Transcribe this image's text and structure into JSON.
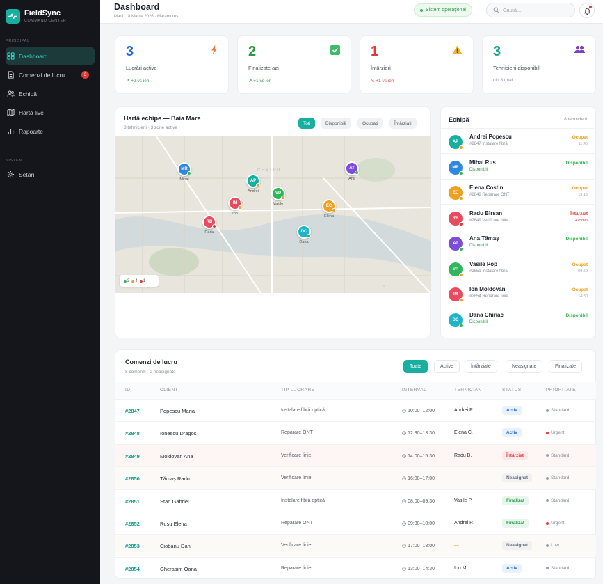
{
  "app": {
    "name": "FieldSync",
    "subtitle": "COMMAND CENTER"
  },
  "sidebar": {
    "section_principal": "PRINCIPAL",
    "section_system": "SISTEM",
    "items": [
      {
        "label": "Dashboard"
      },
      {
        "label": "Comenzi de lucru",
        "badge": "3"
      },
      {
        "label": "Echipă"
      },
      {
        "label": "Hartă live"
      },
      {
        "label": "Rapoarte"
      }
    ],
    "settings": "Setări"
  },
  "header": {
    "title": "Dashboard",
    "date": "Marți, 18 Martie 2026 · Maramureș",
    "status": "Sistem operațional",
    "search_placeholder": "Caută..."
  },
  "kpis": [
    {
      "value": "3",
      "label": "Lucrări active",
      "delta": "+2 vs ieri",
      "color": "#1e6ee0",
      "delta_color": "#2b9a45",
      "icon": "bolt-icon"
    },
    {
      "value": "2",
      "label": "Finalizate azi",
      "delta": "+1 vs ieri",
      "color": "#2b9a45",
      "delta_color": "#2b9a45",
      "icon": "check-icon"
    },
    {
      "value": "1",
      "label": "Întârzieri",
      "delta": "+1 vs ieri",
      "color": "#e53935",
      "delta_color": "#e53935",
      "icon": "warning-icon"
    },
    {
      "value": "3",
      "label": "Tehnicieni disponibili",
      "delta": "din 8 total",
      "color": "#17a08f",
      "delta_color": "#8a8f99",
      "icon": "team-icon"
    }
  ],
  "map": {
    "title": "Hartă echipe — Baia Mare",
    "subtitle": "8 tehnicieni · 3 zone active",
    "filters": [
      "Toți",
      "Disponibili",
      "Ocupați",
      "Întârziați"
    ],
    "district_labels": [
      "CENTRU",
      "VALEA BORCUTULUI"
    ],
    "legend": {
      "available": "3",
      "busy": "4",
      "late": "1"
    },
    "pins": [
      {
        "initials": "MR",
        "name": "Mihai",
        "color": "#2f88e0",
        "status_color": "#34b552"
      },
      {
        "initials": "AP",
        "name": "Andrei",
        "color": "#17b0a0",
        "status_color": "#f0a020"
      },
      {
        "initials": "AT",
        "name": "Ana",
        "color": "#7c4ddb",
        "status_color": "#34b552"
      },
      {
        "initials": "VP",
        "name": "Vasile",
        "color": "#2eb85c",
        "status_color": "#f0a020"
      },
      {
        "initials": "IM",
        "name": "Ion",
        "color": "#e84a5f",
        "status_color": "#f0a020"
      },
      {
        "initials": "EC",
        "name": "Elena",
        "color": "#f0a020",
        "status_color": "#f0a020"
      },
      {
        "initials": "RB",
        "name": "Radu",
        "color": "#e84a5f",
        "status_color": "#e53935"
      },
      {
        "initials": "DC",
        "name": "Dana",
        "color": "#1fb5c9",
        "status_color": "#34b552"
      }
    ]
  },
  "team": {
    "title": "Echipă",
    "count": "8 tehnicieni",
    "members": [
      {
        "initials": "AP",
        "name": "Andrei Popescu",
        "job": "#2847 Instalare fibră",
        "status": "Ocupat",
        "time": "11:45",
        "color": "#17b0a0",
        "status_color": "#f0a020"
      },
      {
        "initials": "MR",
        "name": "Mihai Rus",
        "job": "Disponibil",
        "status": "Disponibil",
        "time": "",
        "color": "#2f88e0",
        "status_color": "#34b552"
      },
      {
        "initials": "EC",
        "name": "Elena Costin",
        "job": "#2848 Reparare ONT",
        "status": "Ocupat",
        "time": "13:15",
        "color": "#f0a020",
        "status_color": "#f0a020"
      },
      {
        "initials": "RB",
        "name": "Radu Bîrsan",
        "job": "#2849 Verificare linie",
        "status": "Întârziat",
        "time": "+25min",
        "color": "#e84a5f",
        "status_color": "#e53935"
      },
      {
        "initials": "AT",
        "name": "Ana Tămaș",
        "job": "Disponibil",
        "status": "Disponibil",
        "time": "",
        "color": "#7c4ddb",
        "status_color": "#34b552"
      },
      {
        "initials": "VP",
        "name": "Vasile Pop",
        "job": "#2851 Instalare fibră",
        "status": "Ocupat",
        "time": "09:50",
        "color": "#2eb85c",
        "status_color": "#f0a020"
      },
      {
        "initials": "IM",
        "name": "Ion Moldovan",
        "job": "#2854 Reparare linie",
        "status": "Ocupat",
        "time": "14:30",
        "color": "#e84a5f",
        "status_color": "#f0a020"
      },
      {
        "initials": "DC",
        "name": "Dana Chiriac",
        "job": "Disponibil",
        "status": "Disponibil",
        "time": "",
        "color": "#1fb5c9",
        "status_color": "#34b552"
      }
    ]
  },
  "orders": {
    "title": "Comenzi de lucru",
    "subtitle": "8 comenzi · 2 neasignate",
    "filters": [
      "Toate",
      "Active",
      "Întârziate",
      "Neasignate",
      "Finalizate"
    ],
    "columns": [
      "ID",
      "CLIENT",
      "TIP LUCRARE",
      "INTERVAL",
      "TEHNICIAN",
      "STATUS",
      "PRIORITATE"
    ],
    "rows": [
      {
        "id": "#2847",
        "client": "Popescu Maria",
        "type": "Instalare fibră optică",
        "interval": "10:00–12:00",
        "tech": "Andrei P.",
        "status": "Activ",
        "priority": "Standard",
        "kind": "active"
      },
      {
        "id": "#2848",
        "client": "Ionescu Dragoș",
        "type": "Reparare ONT",
        "interval": "12:30–13:30",
        "tech": "Elena C.",
        "status": "Activ",
        "priority": "Urgent",
        "kind": "active"
      },
      {
        "id": "#2849",
        "client": "Moldovan Ana",
        "type": "Verificare linie",
        "interval": "14:00–15:30",
        "tech": "Radu B.",
        "status": "Întârziat",
        "priority": "Standard",
        "kind": "late"
      },
      {
        "id": "#2850",
        "client": "Tămaș Radu",
        "type": "Verificare linie",
        "interval": "16:00–17:00",
        "tech": "—",
        "status": "Neasignat",
        "priority": "Standard",
        "kind": "unassigned"
      },
      {
        "id": "#2851",
        "client": "Stan Gabriel",
        "type": "Instalare fibră optică",
        "interval": "08:00–09:30",
        "tech": "Vasile P.",
        "status": "Finalizat",
        "priority": "Standard",
        "kind": "done"
      },
      {
        "id": "#2852",
        "client": "Rusu Elena",
        "type": "Reparare ONT",
        "interval": "09:30–10:00",
        "tech": "Andrei P.",
        "status": "Finalizat",
        "priority": "Urgent",
        "kind": "done"
      },
      {
        "id": "#2853",
        "client": "Ciobanu Dan",
        "type": "Verificare linie",
        "interval": "17:00–18:00",
        "tech": "—",
        "status": "Neasignat",
        "priority": "Low",
        "kind": "unassigned"
      },
      {
        "id": "#2854",
        "client": "Gherasim Oana",
        "type": "Reparare linie",
        "interval": "13:00–14:30",
        "tech": "Ion M.",
        "status": "Activ",
        "priority": "Standard",
        "kind": "active"
      }
    ]
  }
}
